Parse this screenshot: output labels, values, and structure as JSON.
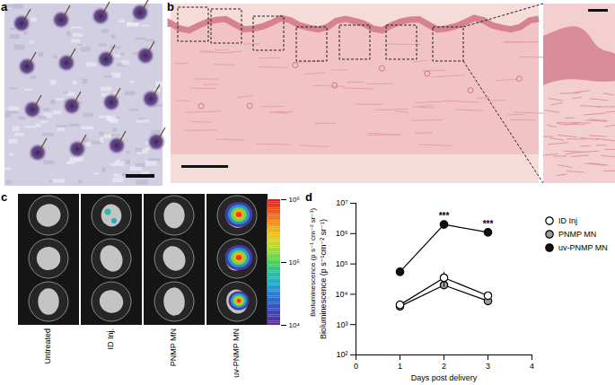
{
  "panel_labels": [
    "a",
    "b",
    "c",
    "d"
  ],
  "panel_c": {
    "columns": [
      "Untreated",
      "ID Inj.",
      "PNMP MN",
      "uv-PNMP MN"
    ],
    "colorbar": {
      "label": "Bioluminescence (p s⁻¹ cm⁻² sr⁻¹)",
      "range": [
        10000,
        1000000
      ],
      "log": true,
      "ticks": [
        {
          "value": 10000,
          "label": "10⁴"
        },
        {
          "value": 100000,
          "label": "10⁵"
        },
        {
          "value": 1000000,
          "label": "10⁶"
        }
      ]
    }
  },
  "chart_data": {
    "type": "line",
    "x_label": "Days post delivery",
    "y_label": "Bioluminescence (p s⁻¹cm⁻² sr⁻¹)",
    "x": [
      1,
      2,
      3
    ],
    "xlim": [
      0,
      4
    ],
    "xticks": [
      0,
      1,
      2,
      3,
      4
    ],
    "ylim": [
      100,
      10000000
    ],
    "yticks": [
      {
        "value": 100,
        "label": "10²"
      },
      {
        "value": 1000,
        "label": "10³"
      },
      {
        "value": 10000,
        "label": "10⁴"
      },
      {
        "value": 100000,
        "label": "10⁵"
      },
      {
        "value": 1000000,
        "label": "10⁶"
      },
      {
        "value": 10000000,
        "label": "10⁷"
      }
    ],
    "log": "y",
    "legend": "right",
    "marker": "circle",
    "series": [
      {
        "name": "ID Inj",
        "color": "#ffffff",
        "values": [
          4500,
          35000,
          9000
        ],
        "errors": [
          1200,
          18000,
          2500
        ]
      },
      {
        "name": "PNMP MN",
        "color": "#9a9a9a",
        "values": [
          4000,
          20000,
          6000
        ],
        "errors": [
          800,
          5000,
          1200
        ]
      },
      {
        "name": "uv-PNMP MN",
        "color": "#111111",
        "values": [
          55000,
          2000000,
          1100000
        ],
        "errors": [
          15000,
          300000,
          200000
        ]
      }
    ],
    "annotations": [
      {
        "x": 2,
        "text": "***"
      },
      {
        "x": 3,
        "text": "***"
      }
    ]
  }
}
